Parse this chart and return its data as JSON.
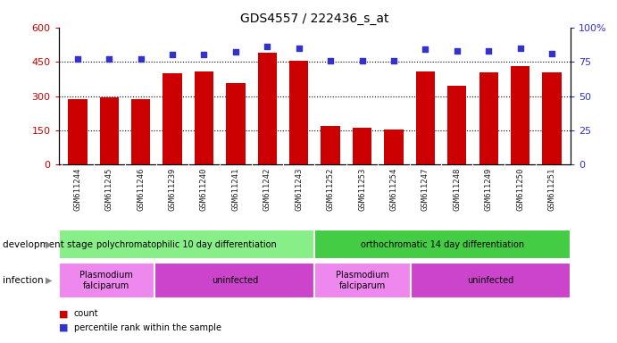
{
  "title": "GDS4557 / 222436_s_at",
  "samples": [
    "GSM611244",
    "GSM611245",
    "GSM611246",
    "GSM611239",
    "GSM611240",
    "GSM611241",
    "GSM611242",
    "GSM611243",
    "GSM611252",
    "GSM611253",
    "GSM611254",
    "GSM611247",
    "GSM611248",
    "GSM611249",
    "GSM611250",
    "GSM611251"
  ],
  "counts": [
    285,
    295,
    288,
    398,
    408,
    355,
    490,
    455,
    168,
    163,
    155,
    408,
    345,
    403,
    430,
    405
  ],
  "percentile_ranks": [
    77,
    77,
    77,
    80,
    80,
    82,
    86,
    85,
    76,
    76,
    76,
    84,
    83,
    83,
    85,
    81
  ],
  "ylim_left": [
    0,
    600
  ],
  "ylim_right": [
    0,
    100
  ],
  "yticks_left": [
    0,
    150,
    300,
    450,
    600
  ],
  "yticks_right": [
    0,
    25,
    50,
    75,
    100
  ],
  "bar_color": "#cc0000",
  "dot_color": "#3333cc",
  "hline_values": [
    150,
    300,
    450
  ],
  "dev_stage_groups": [
    {
      "label": "polychromatophilic 10 day differentiation",
      "start": 0,
      "end": 8,
      "color": "#88ee88"
    },
    {
      "label": "orthochromatic 14 day differentiation",
      "start": 8,
      "end": 16,
      "color": "#44cc44"
    }
  ],
  "infection_groups": [
    {
      "label": "Plasmodium\nfalciparum",
      "start": 0,
      "end": 3,
      "color": "#ee88ee"
    },
    {
      "label": "uninfected",
      "start": 3,
      "end": 8,
      "color": "#cc44cc"
    },
    {
      "label": "Plasmodium\nfalciparum",
      "start": 8,
      "end": 11,
      "color": "#ee88ee"
    },
    {
      "label": "uninfected",
      "start": 11,
      "end": 16,
      "color": "#cc44cc"
    }
  ],
  "legend_count_label": "count",
  "legend_pct_label": "percentile rank within the sample",
  "dev_stage_label": "development stage",
  "infection_label": "infection",
  "tick_label_color": "#222222",
  "left_axis_color": "#cc0000",
  "right_axis_color": "#3333cc",
  "xtick_bg_color": "#cccccc",
  "plot_bg_color": "#ffffff"
}
